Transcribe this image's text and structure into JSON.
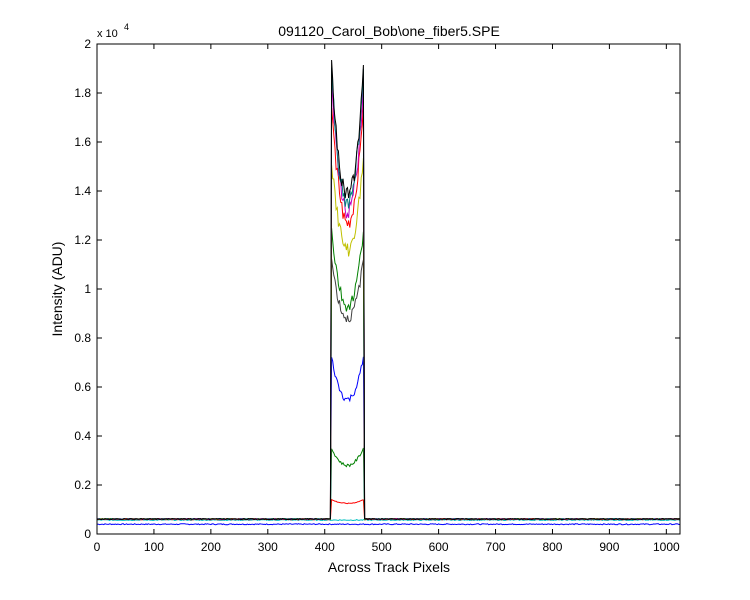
{
  "chart_data": {
    "type": "line",
    "title": "091120_Carol_Bob\\one_fiber5.SPE",
    "xlabel": "Across Track Pixels",
    "ylabel": "Intensity (ADU)",
    "y_exponent_label": "x 10",
    "y_exponent": "4",
    "xlim": [
      0,
      1024
    ],
    "ylim": [
      0,
      20000
    ],
    "x_ticks": [
      0,
      100,
      200,
      300,
      400,
      500,
      600,
      700,
      800,
      900,
      1000
    ],
    "y_ticks": [
      0,
      2000,
      4000,
      6000,
      8000,
      10000,
      12000,
      14000,
      16000,
      18000,
      20000
    ],
    "y_tick_labels": [
      "0",
      "0.2",
      "0.4",
      "0.6",
      "0.8",
      "1",
      "1.2",
      "1.4",
      "1.6",
      "1.8",
      "2"
    ],
    "x_tick_labels": [
      "0",
      "100",
      "200",
      "300",
      "400",
      "500",
      "600",
      "700",
      "800",
      "900",
      "1000"
    ],
    "grid": false,
    "legend": "none",
    "fiber_region": {
      "start": 412,
      "end": 468
    },
    "series": [
      {
        "color": "#0000ff",
        "baseline": 400,
        "edge": 400,
        "center": 400
      },
      {
        "color": "#00c0c0",
        "baseline": 570,
        "edge": 570,
        "center": 570
      },
      {
        "color": "#ff0000",
        "baseline": 600,
        "edge": 1400,
        "center": 1250
      },
      {
        "color": "#008000",
        "baseline": 610,
        "edge": 3500,
        "center": 2800
      },
      {
        "color": "#0000ff",
        "baseline": 610,
        "edge": 7200,
        "center": 5500
      },
      {
        "color": "#404040",
        "baseline": 610,
        "edge": 11200,
        "center": 8800
      },
      {
        "color": "#008000",
        "baseline": 610,
        "edge": 12400,
        "center": 9300
      },
      {
        "color": "#c0c000",
        "baseline": 610,
        "edge": 15300,
        "center": 11600
      },
      {
        "color": "#ff0000",
        "baseline": 610,
        "edge": 17700,
        "center": 12600
      },
      {
        "color": "#c000c0",
        "baseline": 610,
        "edge": 18300,
        "center": 13200
      },
      {
        "color": "#008080",
        "baseline": 610,
        "edge": 18900,
        "center": 13500
      },
      {
        "color": "#000000",
        "baseline": 610,
        "edge": 19100,
        "center": 13800
      }
    ]
  }
}
